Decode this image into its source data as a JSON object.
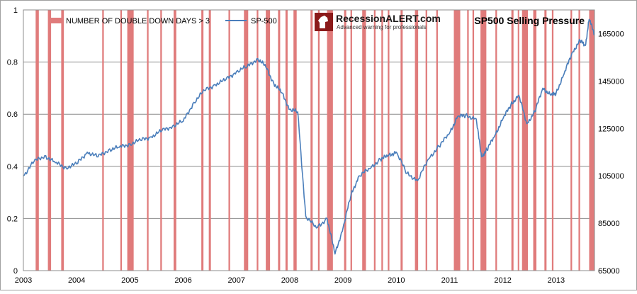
{
  "colors": {
    "bar": "#e07b7b",
    "line": "#4a7ebb",
    "grid": "#8c8c8c",
    "plot_border": "#8c8c8c",
    "frame": "#a0a0a0"
  },
  "logo": {
    "text_main": "RecessionALERT.com",
    "text_sub": "Advanced warning for professionals"
  },
  "chart_data": {
    "type": "bar",
    "title": "SP500 Selling Pressure",
    "legend": [
      {
        "name": "NUMBER OF DOUBLE DOWN DAYS > 3",
        "kind": "bar"
      },
      {
        "name": "SP-500",
        "kind": "line"
      }
    ],
    "legend_position": "top-left",
    "grid": true,
    "xlim": [
      2003.0,
      2013.72
    ],
    "x_ticks": [
      "2003",
      "2004",
      "2005",
      "2006",
      "2007",
      "2008",
      "2009",
      "2010",
      "2011",
      "2012",
      "2013"
    ],
    "y_left": {
      "ylim": [
        0,
        1
      ],
      "ticks": [
        "0",
        "0.2",
        "0.4",
        "0.6",
        "0.8",
        "1"
      ]
    },
    "y_right": {
      "ylim": [
        65000,
        175000
      ],
      "ticks": [
        "65000",
        "85000",
        "105000",
        "125000",
        "145000",
        "165000"
      ]
    },
    "series": [
      {
        "name": "NUMBER OF DOUBLE DOWN DAYS > 3",
        "axis": "left",
        "type": "bar",
        "bars": [
          {
            "start": 2003.23,
            "end": 2003.29
          },
          {
            "start": 2003.46,
            "end": 2003.52
          },
          {
            "start": 2003.71,
            "end": 2003.76
          },
          {
            "start": 2004.48,
            "end": 2004.51
          },
          {
            "start": 2004.82,
            "end": 2004.85
          },
          {
            "start": 2004.95,
            "end": 2005.07
          },
          {
            "start": 2005.32,
            "end": 2005.35
          },
          {
            "start": 2005.57,
            "end": 2005.6
          },
          {
            "start": 2005.82,
            "end": 2005.87
          },
          {
            "start": 2006.34,
            "end": 2006.38
          },
          {
            "start": 2006.48,
            "end": 2006.52
          },
          {
            "start": 2006.85,
            "end": 2006.88
          },
          {
            "start": 2007.14,
            "end": 2007.22
          },
          {
            "start": 2007.38,
            "end": 2007.41
          },
          {
            "start": 2007.55,
            "end": 2007.63
          },
          {
            "start": 2007.78,
            "end": 2007.82
          },
          {
            "start": 2007.92,
            "end": 2007.96
          },
          {
            "start": 2008.07,
            "end": 2008.13
          },
          {
            "start": 2008.39,
            "end": 2008.43
          },
          {
            "start": 2008.53,
            "end": 2008.56
          },
          {
            "start": 2008.7,
            "end": 2008.81
          },
          {
            "start": 2009.02,
            "end": 2009.06
          },
          {
            "start": 2009.14,
            "end": 2009.17
          },
          {
            "start": 2009.36,
            "end": 2009.43
          },
          {
            "start": 2009.58,
            "end": 2009.61
          },
          {
            "start": 2009.72,
            "end": 2009.75
          },
          {
            "start": 2009.84,
            "end": 2009.87
          },
          {
            "start": 2010.08,
            "end": 2010.12
          },
          {
            "start": 2010.35,
            "end": 2010.41
          },
          {
            "start": 2010.55,
            "end": 2010.58
          },
          {
            "start": 2010.75,
            "end": 2010.78
          },
          {
            "start": 2011.08,
            "end": 2011.2
          },
          {
            "start": 2011.33,
            "end": 2011.36
          },
          {
            "start": 2011.43,
            "end": 2011.46
          },
          {
            "start": 2011.58,
            "end": 2011.69
          },
          {
            "start": 2011.86,
            "end": 2011.89
          },
          {
            "start": 2012.16,
            "end": 2012.2
          },
          {
            "start": 2012.28,
            "end": 2012.3
          },
          {
            "start": 2012.36,
            "end": 2012.47
          },
          {
            "start": 2012.57,
            "end": 2012.63
          },
          {
            "start": 2012.78,
            "end": 2012.82
          },
          {
            "start": 2012.92,
            "end": 2012.95
          },
          {
            "start": 2013.27,
            "end": 2013.3
          },
          {
            "start": 2013.42,
            "end": 2013.45
          },
          {
            "start": 2013.62,
            "end": 2013.72
          }
        ]
      },
      {
        "name": "SP-500",
        "axis": "right",
        "type": "line",
        "x": [
          2003.0,
          2003.2,
          2003.4,
          2003.6,
          2003.8,
          2004.0,
          2004.2,
          2004.4,
          2004.6,
          2004.8,
          2005.0,
          2005.2,
          2005.4,
          2005.6,
          2005.8,
          2006.0,
          2006.2,
          2006.4,
          2006.6,
          2006.8,
          2007.0,
          2007.2,
          2007.4,
          2007.55,
          2007.7,
          2007.85,
          2008.0,
          2008.15,
          2008.3,
          2008.5,
          2008.7,
          2008.85,
          2009.0,
          2009.15,
          2009.3,
          2009.5,
          2009.7,
          2009.85,
          2010.0,
          2010.2,
          2010.4,
          2010.6,
          2010.8,
          2011.0,
          2011.15,
          2011.3,
          2011.5,
          2011.6,
          2011.7,
          2011.85,
          2012.0,
          2012.15,
          2012.3,
          2012.45,
          2012.6,
          2012.75,
          2012.9,
          2013.0,
          2013.15,
          2013.3,
          2013.45,
          2013.55,
          2013.62,
          2013.72
        ],
        "y": [
          105000,
          111000,
          113500,
          110500,
          108500,
          110000,
          115000,
          113000,
          116000,
          117000,
          118500,
          120000,
          121500,
          124000,
          126000,
          128000,
          136000,
          141000,
          143500,
          145500,
          149000,
          151000,
          154500,
          151000,
          144000,
          140000,
          133000,
          132000,
          88000,
          83000,
          87000,
          72000,
          83000,
          97000,
          105000,
          108000,
          112000,
          113500,
          115000,
          106000,
          103000,
          112000,
          117500,
          123000,
          130000,
          130500,
          129000,
          113000,
          116000,
          122000,
          129000,
          135000,
          139000,
          127000,
          132000,
          142000,
          139000,
          140000,
          148000,
          157000,
          162000,
          160000,
          171000,
          165000
        ]
      }
    ]
  }
}
